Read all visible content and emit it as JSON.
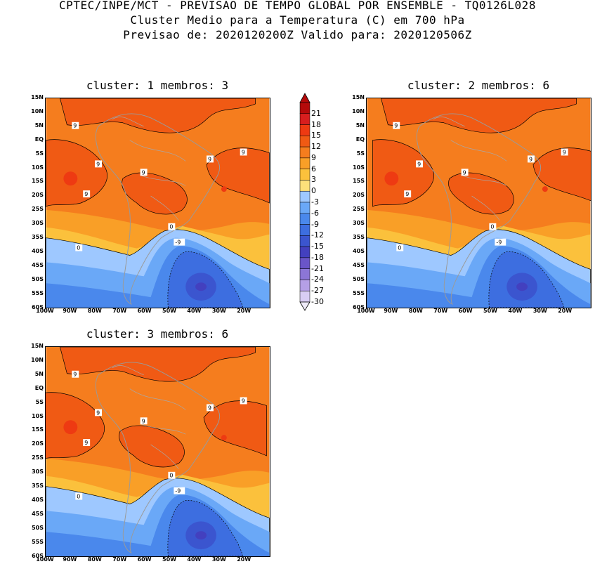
{
  "header": {
    "line1": "CPTEC/INPE/MCT - PREVISAO DE TEMPO GLOBAL POR ENSEMBLE - TQ0126L028",
    "line2": "Cluster Medio para a Temperatura (C) em 700 hPa",
    "line3": "Previsao de: 2020120200Z   Valido para: 2020120506Z"
  },
  "panels": [
    {
      "title": "cluster: 1  membros: 3"
    },
    {
      "title": "cluster: 2  membros: 6"
    },
    {
      "title": "cluster: 3  membros: 6"
    }
  ],
  "lat_labels": [
    "15N",
    "10N",
    "5N",
    "EQ",
    "5S",
    "10S",
    "15S",
    "20S",
    "25S",
    "30S",
    "35S",
    "40S",
    "45S",
    "50S",
    "55S",
    "60S"
  ],
  "lon_labels": [
    "100W",
    "90W",
    "80W",
    "70W",
    "60W",
    "50W",
    "40W",
    "30W",
    "20W"
  ],
  "colorbar": {
    "labels": [
      "21",
      "18",
      "15",
      "12",
      "9",
      "6",
      "3",
      "0",
      "-3",
      "-6",
      "-9",
      "-12",
      "-15",
      "-18",
      "-21",
      "-24",
      "-27",
      "-30"
    ],
    "colors": [
      "#b50a0a",
      "#d81e1e",
      "#ee3a12",
      "#f05a14",
      "#f57d1e",
      "#f99f27",
      "#fbc13c",
      "#fde07a",
      "#9ec8ff",
      "#6aa8f7",
      "#4a88ec",
      "#3d6ee0",
      "#3b55cf",
      "#4340bf",
      "#6a55c8",
      "#8c76d6",
      "#b59fe6",
      "#d8cdf4"
    ]
  },
  "contour_labels": {
    "nine": "9",
    "zero": "0",
    "neg9": "-9"
  }
}
